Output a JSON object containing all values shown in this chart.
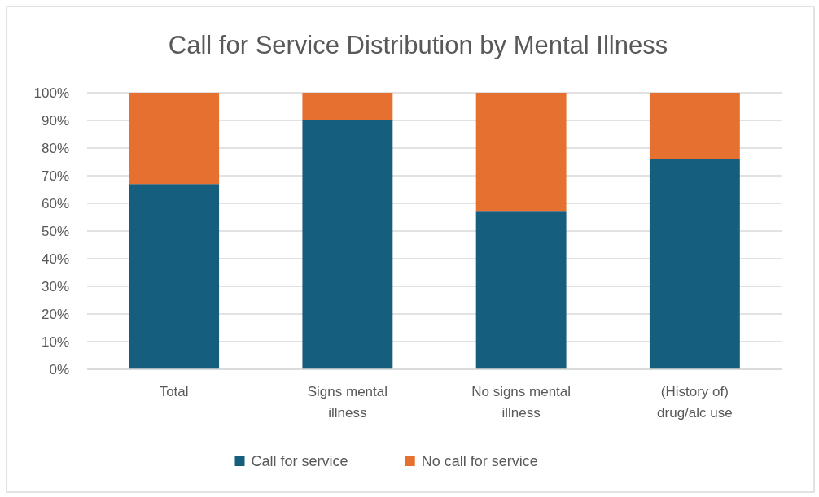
{
  "chart_data": {
    "type": "bar",
    "title": "Call for Service Distribution by Mental Illness",
    "categories": [
      "Total",
      "Signs mental illness",
      "No signs mental illness",
      "(History of) drug/alc use"
    ],
    "stacked": true,
    "series": [
      {
        "name": "Call for service",
        "color": "#155e7e",
        "values": [
          67,
          90,
          57,
          76
        ]
      },
      {
        "name": "No call for service",
        "color": "#e5702f",
        "values": [
          33,
          10,
          43,
          24
        ]
      }
    ],
    "ylim": [
      0,
      100
    ],
    "yticks": [
      {
        "value": 0,
        "label": "0%"
      },
      {
        "value": 10,
        "label": "10%"
      },
      {
        "value": 20,
        "label": "20%"
      },
      {
        "value": 30,
        "label": "30%"
      },
      {
        "value": 40,
        "label": "40%"
      },
      {
        "value": 50,
        "label": "50%"
      },
      {
        "value": 60,
        "label": "60%"
      },
      {
        "value": 70,
        "label": "70%"
      },
      {
        "value": 80,
        "label": "80%"
      },
      {
        "value": 90,
        "label": "90%"
      },
      {
        "value": 100,
        "label": "100%"
      }
    ],
    "grid": "y",
    "legend": "bottom"
  }
}
